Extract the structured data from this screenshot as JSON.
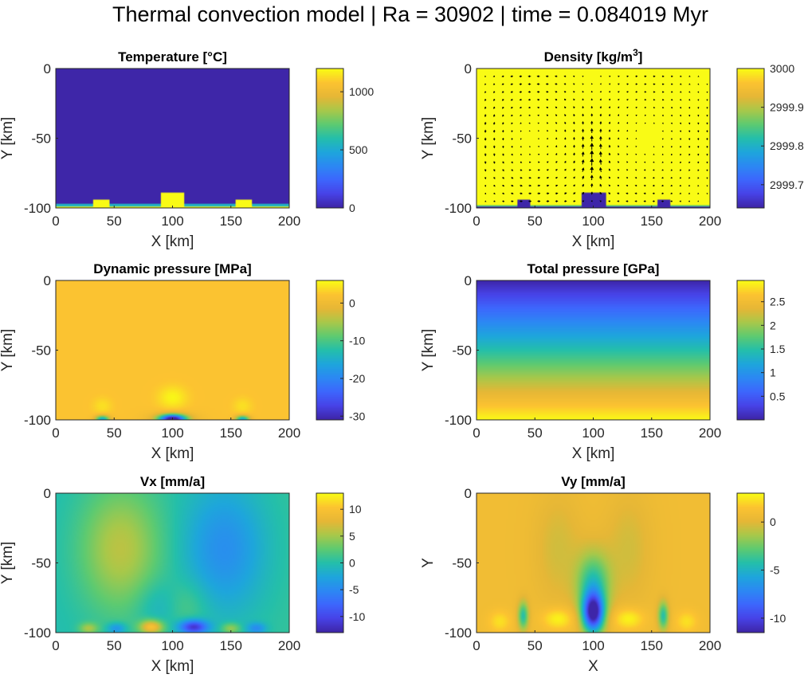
{
  "figure": {
    "title": "Thermal convection model | Ra = 30902 | time = 0.084019 Myr"
  },
  "colormap": [
    "#3e26a8",
    "#4743e8",
    "#3d67fd",
    "#2c88f3",
    "#1ea6dc",
    "#24bfaa",
    "#5dca71",
    "#a8c84a",
    "#e6b736",
    "#fcc331",
    "#f9fb15"
  ],
  "chart_data": [
    {
      "type": "heatmap",
      "title": "Temperature [°C]",
      "xlabel": "X [km]",
      "ylabel": "Y [km]",
      "xlim": [
        0,
        200
      ],
      "ylim": [
        -100,
        0
      ],
      "xticks": [
        "0",
        "50",
        "100",
        "150",
        "200"
      ],
      "yticks": [
        "0",
        "-50",
        "-100"
      ],
      "clim": [
        0,
        1200
      ],
      "cticks": [
        {
          "v": 0,
          "t": "0"
        },
        {
          "v": 500,
          "t": "500"
        },
        {
          "v": 1000,
          "t": "1000"
        }
      ],
      "field": {
        "kind": "temperature",
        "background": 0,
        "max": 1200,
        "anomalies": [
          {
            "x": [
              32,
              46
            ],
            "y": [
              -100,
              -94.5
            ]
          },
          {
            "x": [
              90,
              110
            ],
            "y": [
              -100,
              -89.5
            ]
          },
          {
            "x": [
              154,
              168
            ],
            "y": [
              -100,
              -94.5
            ]
          }
        ]
      }
    },
    {
      "type": "heatmap",
      "title": "Density [kg/m^3]",
      "title_main": "Density [kg/m",
      "title_sup": "3",
      "title_end": "]",
      "xlabel": "X [km]",
      "ylabel": "Y [km]",
      "xlim": [
        0,
        200
      ],
      "ylim": [
        -100,
        0
      ],
      "xticks": [
        "0",
        "50",
        "100",
        "150",
        "200"
      ],
      "yticks": [
        "0",
        "-50",
        "-100"
      ],
      "clim": [
        2999.64,
        3000.0
      ],
      "cticks": [
        {
          "v": 3000,
          "t": "3000"
        },
        {
          "v": 2999.9,
          "t": "2999.9"
        },
        {
          "v": 2999.8,
          "t": "2999.8"
        },
        {
          "v": 2999.7,
          "t": "2999.7"
        }
      ],
      "field": {
        "kind": "density",
        "background": 3000.0,
        "min": 2999.64,
        "anomalies": [
          {
            "x": [
              35,
              46
            ],
            "y": [
              -100,
              -94.5
            ]
          },
          {
            "x": [
              90,
              111
            ],
            "y": [
              -100,
              -89.5
            ]
          },
          {
            "x": [
              155,
              166
            ],
            "y": [
              -100,
              -94.5
            ]
          }
        ]
      },
      "quiver": true
    },
    {
      "type": "heatmap",
      "title": "Dynamic pressure [MPa]",
      "xlabel": "X [km]",
      "ylabel": "Y [km]",
      "xlim": [
        0,
        200
      ],
      "ylim": [
        -100,
        0
      ],
      "xticks": [
        "0",
        "50",
        "100",
        "150",
        "200"
      ],
      "yticks": [
        "0",
        "-50",
        "-100"
      ],
      "clim": [
        -31,
        6
      ],
      "cticks": [
        {
          "v": 0,
          "t": "0"
        },
        {
          "v": -10,
          "t": "-10"
        },
        {
          "v": -20,
          "t": "-20"
        },
        {
          "v": -30,
          "t": "-30"
        }
      ],
      "field": {
        "kind": "dynp"
      }
    },
    {
      "type": "heatmap",
      "title": "Total pressure [GPa]",
      "xlabel": "X [km]",
      "ylabel": "Y [km]",
      "xlim": [
        0,
        200
      ],
      "ylim": [
        -100,
        0
      ],
      "xticks": [
        "0",
        "50",
        "100",
        "150",
        "200"
      ],
      "yticks": [
        "0",
        "-50",
        "-100"
      ],
      "clim": [
        0,
        2.95
      ],
      "cticks": [
        {
          "v": 0.5,
          "t": "0.5"
        },
        {
          "v": 1,
          "t": "1"
        },
        {
          "v": 1.5,
          "t": "1.5"
        },
        {
          "v": 2,
          "t": "2"
        },
        {
          "v": 2.5,
          "t": "2.5"
        }
      ],
      "field": {
        "kind": "totp",
        "top": 0,
        "bottom": 2.95
      }
    },
    {
      "type": "heatmap",
      "title": "Vx [mm/a]",
      "xlabel": "X [km]",
      "ylabel": "Y [km]",
      "xlim": [
        0,
        200
      ],
      "ylim": [
        -100,
        0
      ],
      "xticks": [
        "0",
        "50",
        "100",
        "150",
        "200"
      ],
      "yticks": [
        "0",
        "-50",
        "-100"
      ],
      "clim": [
        -13,
        13
      ],
      "cticks": [
        {
          "v": 10,
          "t": "10"
        },
        {
          "v": 5,
          "t": "5"
        },
        {
          "v": 0,
          "t": "0"
        },
        {
          "v": -5,
          "t": "-5"
        },
        {
          "v": -10,
          "t": "-10"
        }
      ],
      "field": {
        "kind": "vx"
      }
    },
    {
      "type": "heatmap",
      "title": "Vy [mm/a]",
      "xlabel": "X",
      "ylabel": "Y",
      "xlim": [
        0,
        200
      ],
      "ylim": [
        -100,
        0
      ],
      "xticks": [
        "0",
        "50",
        "100",
        "150",
        "200"
      ],
      "yticks": [
        "0",
        "-50",
        "-100"
      ],
      "clim": [
        -11.5,
        3
      ],
      "cticks": [
        {
          "v": 0,
          "t": "0"
        },
        {
          "v": -5,
          "t": "-5"
        },
        {
          "v": -10,
          "t": "-10"
        }
      ],
      "field": {
        "kind": "vy"
      }
    }
  ]
}
